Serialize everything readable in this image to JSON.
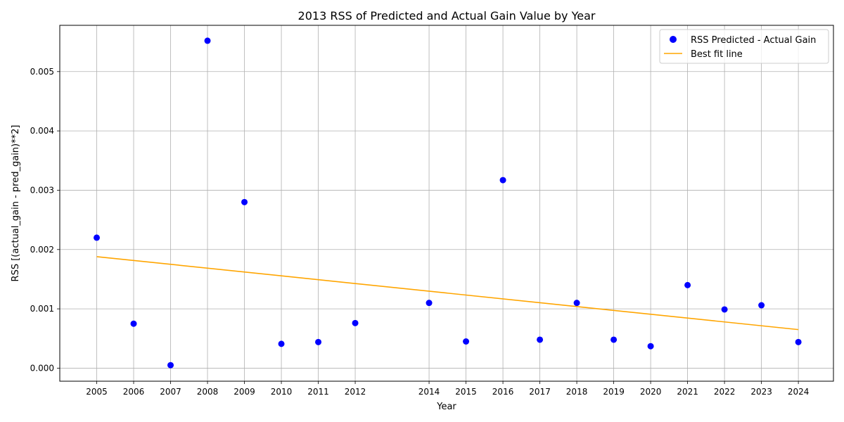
{
  "chart_data": {
    "type": "scatter",
    "title": "2013 RSS of Predicted and Actual Gain Value by Year",
    "xlabel": "Year",
    "ylabel": "RSS [(actual_gain - pred_gain)**2]",
    "xlim": [
      2004.0,
      2024.95
    ],
    "ylim": [
      -0.00022,
      0.00578
    ],
    "grid": true,
    "legend_position": "top-right",
    "x_ticks": [
      2005,
      2006,
      2007,
      2008,
      2009,
      2010,
      2011,
      2012,
      2014,
      2015,
      2016,
      2017,
      2018,
      2019,
      2020,
      2021,
      2022,
      2023,
      2024
    ],
    "y_ticks": [
      {
        "value": 0,
        "label": "0.000"
      },
      {
        "value": 0.001,
        "label": "0.001"
      },
      {
        "value": 0.002,
        "label": "0.002"
      },
      {
        "value": 0.003,
        "label": "0.003"
      },
      {
        "value": 0.004,
        "label": "0.004"
      },
      {
        "value": 0.005,
        "label": "0.005"
      }
    ],
    "series": [
      {
        "name": "RSS Predicted - Actual Gain",
        "kind": "scatter",
        "color": "#0000ff",
        "x": [
          2005,
          2006,
          2007,
          2008,
          2009,
          2010,
          2011,
          2012,
          2014,
          2015,
          2016,
          2017,
          2018,
          2019,
          2020,
          2021,
          2022,
          2023,
          2024
        ],
        "y": [
          0.0022,
          0.00075,
          5e-05,
          0.00552,
          0.0028,
          0.00041,
          0.00044,
          0.00076,
          0.0011,
          0.00045,
          0.00317,
          0.00048,
          0.0011,
          0.00048,
          0.00037,
          0.0014,
          0.00099,
          0.00106,
          0.00044
        ]
      },
      {
        "name": "Best fit line",
        "kind": "line",
        "color": "#ffa500",
        "x": [
          2005,
          2024
        ],
        "y": [
          0.00188,
          0.00065
        ]
      }
    ]
  }
}
